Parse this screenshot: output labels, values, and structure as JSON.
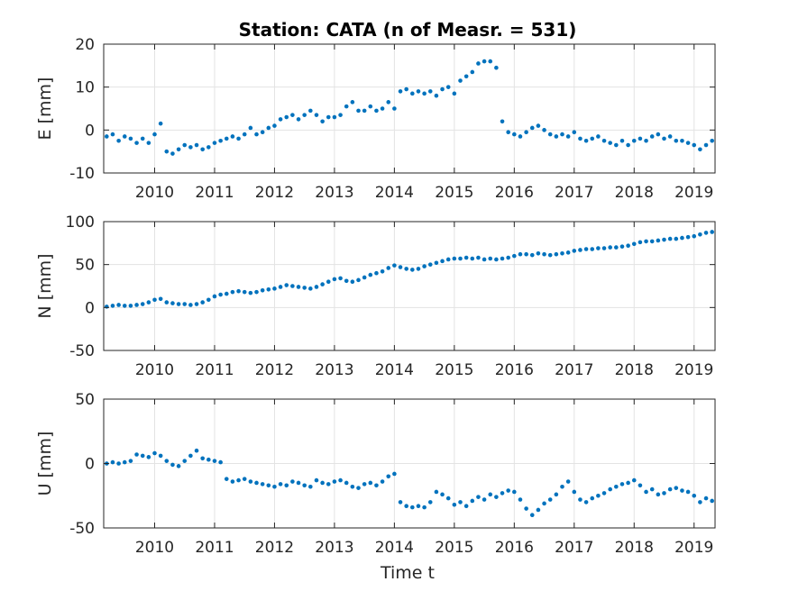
{
  "figure": {
    "title": "Station: CATA (n of Measr. = 531)",
    "xlabel": "Time t",
    "marker_color": "#0072BD",
    "grid_color": "#e3e3e3",
    "axis_color": "#262626"
  },
  "chart_data": [
    {
      "type": "scatter",
      "ylabel": "E [mm]",
      "xlim": [
        2009.15,
        2019.35
      ],
      "ylim": [
        -10,
        20
      ],
      "xticks": [
        2010,
        2011,
        2012,
        2013,
        2014,
        2015,
        2016,
        2017,
        2018,
        2019
      ],
      "yticks": [
        -10,
        0,
        10,
        20
      ],
      "grid": true,
      "series": [
        {
          "x": [
            2009.2,
            2009.3,
            2009.4,
            2009.5,
            2009.6,
            2009.7,
            2009.8,
            2009.9,
            2010.0,
            2010.1,
            2010.2,
            2010.3,
            2010.4,
            2010.5,
            2010.6,
            2010.7,
            2010.8,
            2010.9,
            2011.0,
            2011.1,
            2011.2,
            2011.3,
            2011.4,
            2011.5,
            2011.6,
            2011.7,
            2011.8,
            2011.9,
            2012.0,
            2012.1,
            2012.2,
            2012.3,
            2012.4,
            2012.5,
            2012.6,
            2012.7,
            2012.8,
            2012.9,
            2013.0,
            2013.1,
            2013.2,
            2013.3,
            2013.4,
            2013.5,
            2013.6,
            2013.7,
            2013.8,
            2013.9,
            2014.0,
            2014.1,
            2014.2,
            2014.3,
            2014.4,
            2014.5,
            2014.6,
            2014.7,
            2014.8,
            2014.9,
            2015.0,
            2015.1,
            2015.2,
            2015.3,
            2015.4,
            2015.5,
            2015.6,
            2015.7,
            2015.8,
            2015.9,
            2016.0,
            2016.1,
            2016.2,
            2016.3,
            2016.4,
            2016.5,
            2016.6,
            2016.7,
            2016.8,
            2016.9,
            2017.0,
            2017.1,
            2017.2,
            2017.3,
            2017.4,
            2017.5,
            2017.6,
            2017.7,
            2017.8,
            2017.9,
            2018.0,
            2018.1,
            2018.2,
            2018.3,
            2018.4,
            2018.5,
            2018.6,
            2018.7,
            2018.8,
            2018.9,
            2019.0,
            2019.1,
            2019.2,
            2019.3
          ],
          "y": [
            -1.5,
            -1.0,
            -2.5,
            -1.5,
            -2.0,
            -3.0,
            -2.0,
            -3.0,
            -1.0,
            1.5,
            -5.0,
            -5.5,
            -4.5,
            -3.5,
            -4.0,
            -3.5,
            -4.5,
            -4.0,
            -3.0,
            -2.5,
            -2.0,
            -1.5,
            -2.0,
            -1.0,
            0.5,
            -1.0,
            -0.5,
            0.5,
            1.0,
            2.5,
            3.0,
            3.5,
            2.5,
            3.5,
            4.5,
            3.5,
            2.0,
            3.0,
            3.0,
            3.5,
            5.5,
            6.5,
            4.5,
            4.5,
            5.5,
            4.5,
            5.0,
            6.5,
            5.0,
            9.0,
            9.5,
            8.5,
            9.0,
            8.5,
            9.0,
            8.0,
            9.5,
            10.0,
            8.5,
            11.5,
            12.5,
            13.5,
            15.5,
            16.0,
            16.0,
            14.5,
            2.0,
            -0.5,
            -1.0,
            -1.5,
            -0.5,
            0.5,
            1.0,
            0.0,
            -1.0,
            -1.5,
            -1.0,
            -1.5,
            -0.5,
            -2.0,
            -2.5,
            -2.0,
            -1.5,
            -2.5,
            -3.0,
            -3.5,
            -2.5,
            -3.5,
            -2.5,
            -2.0,
            -2.5,
            -1.5,
            -1.0,
            -2.0,
            -1.5,
            -2.5,
            -2.5,
            -3.0,
            -3.5,
            -4.5,
            -3.5,
            -2.5
          ]
        }
      ]
    },
    {
      "type": "scatter",
      "ylabel": "N [mm]",
      "xlim": [
        2009.15,
        2019.35
      ],
      "ylim": [
        -50,
        100
      ],
      "xticks": [
        2010,
        2011,
        2012,
        2013,
        2014,
        2015,
        2016,
        2017,
        2018,
        2019
      ],
      "yticks": [
        -50,
        0,
        50,
        100
      ],
      "grid": true,
      "series": [
        {
          "x": [
            2009.2,
            2009.3,
            2009.4,
            2009.5,
            2009.6,
            2009.7,
            2009.8,
            2009.9,
            2010.0,
            2010.1,
            2010.2,
            2010.3,
            2010.4,
            2010.5,
            2010.6,
            2010.7,
            2010.8,
            2010.9,
            2011.0,
            2011.1,
            2011.2,
            2011.3,
            2011.4,
            2011.5,
            2011.6,
            2011.7,
            2011.8,
            2011.9,
            2012.0,
            2012.1,
            2012.2,
            2012.3,
            2012.4,
            2012.5,
            2012.6,
            2012.7,
            2012.8,
            2012.9,
            2013.0,
            2013.1,
            2013.2,
            2013.3,
            2013.4,
            2013.5,
            2013.6,
            2013.7,
            2013.8,
            2013.9,
            2014.0,
            2014.1,
            2014.2,
            2014.3,
            2014.4,
            2014.5,
            2014.6,
            2014.7,
            2014.8,
            2014.9,
            2015.0,
            2015.1,
            2015.2,
            2015.3,
            2015.4,
            2015.5,
            2015.6,
            2015.7,
            2015.8,
            2015.9,
            2016.0,
            2016.1,
            2016.2,
            2016.3,
            2016.4,
            2016.5,
            2016.6,
            2016.7,
            2016.8,
            2016.9,
            2017.0,
            2017.1,
            2017.2,
            2017.3,
            2017.4,
            2017.5,
            2017.6,
            2017.7,
            2017.8,
            2017.9,
            2018.0,
            2018.1,
            2018.2,
            2018.3,
            2018.4,
            2018.5,
            2018.6,
            2018.7,
            2018.8,
            2018.9,
            2019.0,
            2019.1,
            2019.2,
            2019.3
          ],
          "y": [
            1,
            2,
            3,
            2,
            2,
            3,
            4,
            6,
            9,
            10,
            6,
            5,
            4,
            4,
            3,
            4,
            6,
            9,
            13,
            15,
            16,
            18,
            19,
            18,
            17,
            18,
            20,
            21,
            22,
            24,
            26,
            25,
            24,
            23,
            22,
            24,
            27,
            30,
            33,
            34,
            31,
            30,
            32,
            35,
            38,
            40,
            42,
            46,
            49,
            47,
            45,
            44,
            45,
            48,
            50,
            52,
            54,
            56,
            57,
            57,
            58,
            57,
            58,
            56,
            57,
            56,
            57,
            58,
            60,
            62,
            62,
            61,
            63,
            62,
            61,
            62,
            63,
            64,
            66,
            67,
            68,
            68,
            69,
            69,
            70,
            70,
            71,
            72,
            74,
            76,
            77,
            77,
            78,
            79,
            80,
            80,
            81,
            82,
            83,
            85,
            87,
            88
          ]
        }
      ]
    },
    {
      "type": "scatter",
      "ylabel": "U [mm]",
      "xlim": [
        2009.15,
        2019.35
      ],
      "ylim": [
        -50,
        50
      ],
      "xticks": [
        2010,
        2011,
        2012,
        2013,
        2014,
        2015,
        2016,
        2017,
        2018,
        2019
      ],
      "yticks": [
        -50,
        0,
        50
      ],
      "grid": true,
      "series": [
        {
          "x": [
            2009.2,
            2009.3,
            2009.4,
            2009.5,
            2009.6,
            2009.7,
            2009.8,
            2009.9,
            2010.0,
            2010.1,
            2010.2,
            2010.3,
            2010.4,
            2010.5,
            2010.6,
            2010.7,
            2010.8,
            2010.9,
            2011.0,
            2011.1,
            2011.2,
            2011.3,
            2011.4,
            2011.5,
            2011.6,
            2011.7,
            2011.8,
            2011.9,
            2012.0,
            2012.1,
            2012.2,
            2012.3,
            2012.4,
            2012.5,
            2012.6,
            2012.7,
            2012.8,
            2012.9,
            2013.0,
            2013.1,
            2013.2,
            2013.3,
            2013.4,
            2013.5,
            2013.6,
            2013.7,
            2013.8,
            2013.9,
            2014.0,
            2014.1,
            2014.2,
            2014.3,
            2014.4,
            2014.5,
            2014.6,
            2014.7,
            2014.8,
            2014.9,
            2015.0,
            2015.1,
            2015.2,
            2015.3,
            2015.4,
            2015.5,
            2015.6,
            2015.7,
            2015.8,
            2015.9,
            2016.0,
            2016.1,
            2016.2,
            2016.3,
            2016.4,
            2016.5,
            2016.6,
            2016.7,
            2016.8,
            2016.9,
            2017.0,
            2017.1,
            2017.2,
            2017.3,
            2017.4,
            2017.5,
            2017.6,
            2017.7,
            2017.8,
            2017.9,
            2018.0,
            2018.1,
            2018.2,
            2018.3,
            2018.4,
            2018.5,
            2018.6,
            2018.7,
            2018.8,
            2018.9,
            2019.0,
            2019.1,
            2019.2,
            2019.3
          ],
          "y": [
            0,
            1,
            0,
            1,
            2,
            7,
            6,
            5,
            8,
            6,
            2,
            -1,
            -2,
            2,
            6,
            10,
            4,
            3,
            2,
            1,
            -12,
            -14,
            -13,
            -12,
            -14,
            -15,
            -16,
            -17,
            -18,
            -16,
            -17,
            -14,
            -15,
            -17,
            -18,
            -13,
            -15,
            -16,
            -14,
            -13,
            -15,
            -18,
            -19,
            -16,
            -15,
            -17,
            -14,
            -10,
            -8,
            -30,
            -33,
            -34,
            -33,
            -34,
            -30,
            -22,
            -24,
            -27,
            -32,
            -30,
            -33,
            -29,
            -26,
            -28,
            -24,
            -26,
            -23,
            -21,
            -22,
            -28,
            -35,
            -40,
            -36,
            -31,
            -28,
            -24,
            -18,
            -14,
            -22,
            -28,
            -30,
            -27,
            -25,
            -23,
            -20,
            -18,
            -16,
            -15,
            -13,
            -17,
            -22,
            -20,
            -24,
            -23,
            -20,
            -19,
            -21,
            -22,
            -25,
            -30,
            -27,
            -29
          ]
        }
      ]
    }
  ]
}
